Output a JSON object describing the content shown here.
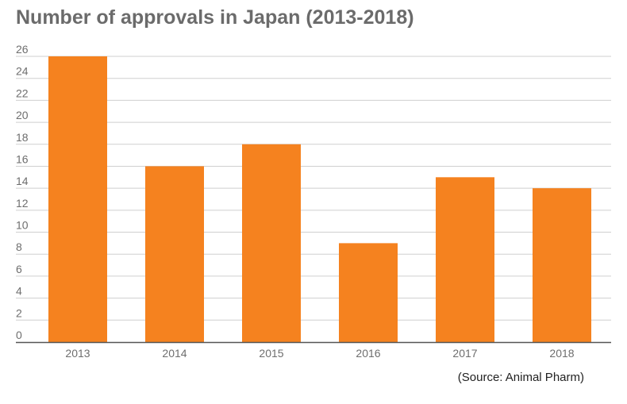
{
  "chart_data": {
    "type": "bar",
    "title": "Number of approvals in Japan (2013-2018)",
    "categories": [
      "2013",
      "2014",
      "2015",
      "2016",
      "2017",
      "2018"
    ],
    "values": [
      26,
      16,
      18,
      9,
      15,
      14
    ],
    "xlabel": "",
    "ylabel": "",
    "ylim": [
      0,
      26
    ],
    "yticks": [
      0,
      2,
      4,
      6,
      8,
      10,
      12,
      14,
      16,
      18,
      20,
      22,
      24,
      26
    ],
    "grid": true,
    "legend": "none",
    "bar_color": "#f5821f",
    "source": "(Source: Animal Pharm)"
  }
}
